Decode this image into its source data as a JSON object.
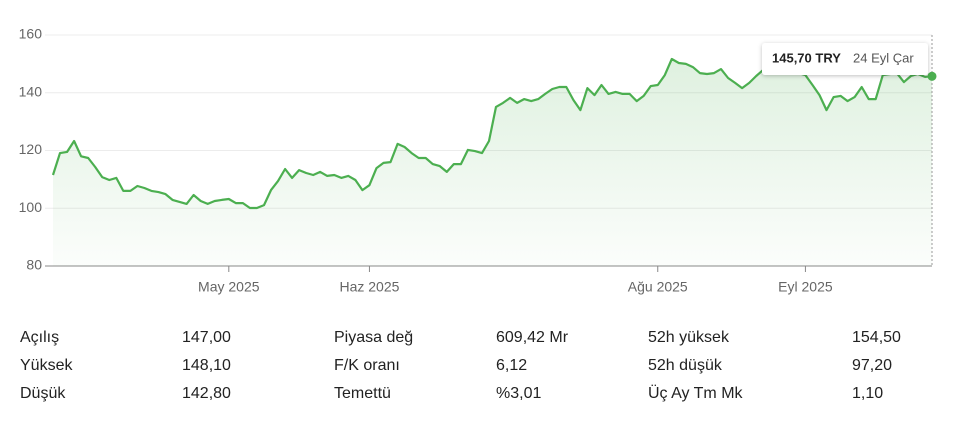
{
  "chart_data": {
    "type": "line",
    "color": "#4caf50",
    "categories": [
      null,
      null,
      null,
      null,
      null,
      null,
      null,
      null,
      null,
      null,
      null,
      null,
      null,
      null,
      null,
      null,
      null,
      null,
      null,
      null,
      null,
      null,
      null,
      null,
      null,
      "May 2025",
      null,
      null,
      null,
      null,
      null,
      null,
      null,
      null,
      null,
      null,
      null,
      null,
      null,
      null,
      null,
      null,
      null,
      null,
      null,
      "Haz 2025",
      null,
      null,
      null,
      null,
      null,
      null,
      null,
      null,
      null,
      null,
      null,
      null,
      null,
      null,
      null,
      null,
      null,
      null,
      null,
      null,
      null,
      null,
      null,
      null,
      null,
      null,
      null,
      null,
      null,
      null,
      null,
      null,
      null,
      null,
      null,
      null,
      null,
      null,
      null,
      null,
      "Ağu 2025",
      null,
      null,
      null,
      null,
      null,
      null,
      null,
      null,
      null,
      null,
      null,
      null,
      null,
      null,
      null,
      null,
      null,
      null,
      null,
      null,
      "Eyl 2025",
      null,
      null,
      null,
      null,
      null,
      null,
      null,
      null,
      null,
      null,
      null,
      null,
      null,
      null,
      null,
      null,
      null,
      null
    ],
    "values": [
      111.5,
      119.1,
      119.5,
      123.3,
      118,
      117.4,
      114.3,
      110.8,
      109.8,
      110.5,
      106,
      106,
      107.7,
      107,
      106,
      105.6,
      104.9,
      102.9,
      102.2,
      101.5,
      104.6,
      102.5,
      101.5,
      102.5,
      102.9,
      103.2,
      101.8,
      101.8,
      100.1,
      100.1,
      101.1,
      106.3,
      109.4,
      113.6,
      110.5,
      113.2,
      112.2,
      111.5,
      112.6,
      111.2,
      111.5,
      110.5,
      111.2,
      109.8,
      106.3,
      108,
      113.9,
      115.7,
      116,
      122.3,
      121.2,
      119.1,
      117.4,
      117.4,
      115.3,
      114.6,
      112.6,
      115.3,
      115.3,
      120.2,
      119.8,
      119.1,
      123.3,
      135.1,
      136.5,
      138.2,
      136.5,
      137.8,
      137.1,
      137.8,
      139.6,
      141.3,
      142,
      142,
      137.5,
      134,
      141.6,
      139.2,
      142.7,
      139.6,
      140.3,
      139.6,
      139.6,
      137.1,
      138.9,
      142.3,
      142.7,
      146.1,
      151.7,
      150.3,
      150,
      148.9,
      146.8,
      146.5,
      146.8,
      148.2,
      145.1,
      143.4,
      141.6,
      143.4,
      145.8,
      147.9,
      149.6,
      150.3,
      149.3,
      147.9,
      146.8,
      146.1,
      142.7,
      139.2,
      134,
      138.5,
      138.9,
      137.1,
      138.5,
      142,
      137.8,
      137.8,
      146.1,
      146.5,
      146.8,
      143.7,
      145.8,
      146.5,
      145.5,
      145.7
    ],
    "ylim": [
      80,
      160
    ],
    "yticks": [
      80,
      100,
      120,
      140,
      160
    ],
    "grid": true,
    "tooltip": {
      "price": "145,70 TRY",
      "date": "24 Eyl Çar"
    }
  },
  "stats": [
    [
      "Açılış",
      "147,00"
    ],
    [
      "Yüksek",
      "148,10"
    ],
    [
      "Düşük",
      "142,80"
    ],
    [
      "Piyasa değ",
      "609,42 Mr"
    ],
    [
      "F/K oranı",
      "6,12"
    ],
    [
      "Temettü",
      "%3,01"
    ],
    [
      "52h yüksek",
      "154,50"
    ],
    [
      "52h düşük",
      "97,20"
    ],
    [
      "Üç Ay Tm Mk",
      "1,10"
    ]
  ]
}
